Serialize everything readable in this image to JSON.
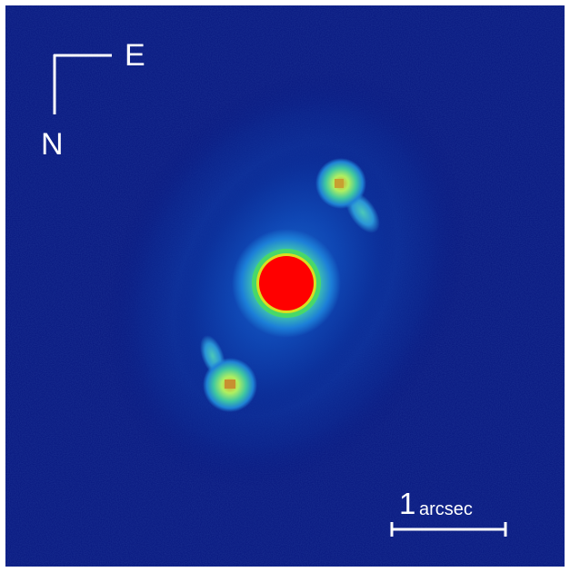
{
  "image": {
    "subject": "lensed-quasar-sky-image",
    "background_color": "#06157e",
    "frame_color": "#ffffff",
    "colormap": [
      "#06157e",
      "#0b3bb8",
      "#1c7fd8",
      "#3fc2b0",
      "#7ff060",
      "#e8d020",
      "#ff0000"
    ]
  },
  "compass": {
    "east_label": "E",
    "north_label": "N",
    "color": "#ffffff"
  },
  "scale_bar": {
    "number": "1",
    "unit": "arcsec",
    "color": "#ffffff"
  }
}
